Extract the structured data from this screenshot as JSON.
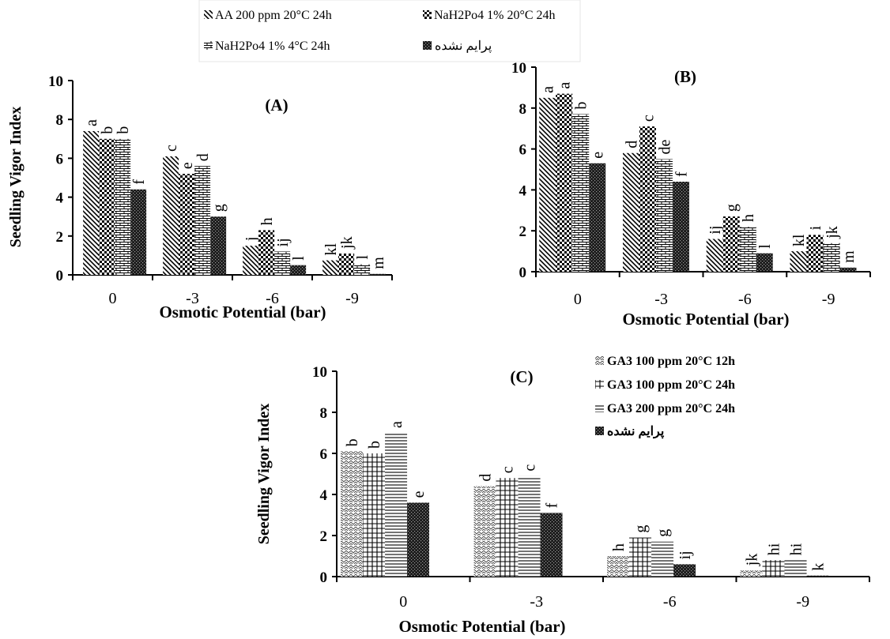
{
  "legend_top": [
    {
      "label": "AA 200 ppm 20°C 24h",
      "pattern": "diag"
    },
    {
      "label": "NaH2Po4 1% 20°C 24h",
      "pattern": "checker"
    },
    {
      "label": "NaH2Po4 1% 4°C 24h",
      "pattern": "brick"
    },
    {
      "label": "پرایم نشده",
      "pattern": "dark"
    }
  ],
  "legend_c": [
    {
      "label": "GA3 100 ppm 20°C 12h",
      "pattern": "zigzag"
    },
    {
      "label": "GA3 100 ppm 20°C 24h",
      "pattern": "grid"
    },
    {
      "label": "GA3 200 ppm 20°C 24h",
      "pattern": "hlines"
    },
    {
      "label": "پرایم نشده",
      "pattern": "dark"
    }
  ],
  "chart_data": [
    {
      "type": "bar",
      "title": "(A)",
      "xlabel": "Osmotic Potential (bar)",
      "ylabel": "Seedling Vigor Index",
      "ylim": [
        0,
        10
      ],
      "yticks": [
        0,
        2,
        4,
        6,
        8,
        10
      ],
      "categories": [
        "0",
        "-3",
        "-6",
        "-9"
      ],
      "series": [
        {
          "name": "AA 200 ppm 20°C 24h",
          "values": [
            7.4,
            6.1,
            1.5,
            0.75
          ],
          "letters": [
            "a",
            "c",
            "j",
            "kl"
          ]
        },
        {
          "name": "NaH2Po4 1% 20°C 24h",
          "values": [
            7.0,
            5.2,
            2.3,
            1.1
          ],
          "letters": [
            "b",
            "e",
            "h",
            "jk"
          ]
        },
        {
          "name": "NaH2Po4 1% 4°C 24h",
          "values": [
            7.0,
            5.6,
            1.2,
            0.55
          ],
          "letters": [
            "b",
            "d",
            "ij",
            "l"
          ]
        },
        {
          "name": "پرایم نشده",
          "values": [
            4.4,
            3.0,
            0.5,
            0.05
          ],
          "letters": [
            "f",
            "g",
            "l",
            "m"
          ]
        }
      ]
    },
    {
      "type": "bar",
      "title": "(B)",
      "xlabel": "Osmotic Potential (bar)",
      "ylabel": "",
      "ylim": [
        0,
        10
      ],
      "yticks": [
        0,
        2,
        4,
        6,
        8,
        10
      ],
      "categories": [
        "0",
        "-3",
        "-6",
        "-9"
      ],
      "series": [
        {
          "name": "AA 200 ppm 20°C 24h",
          "values": [
            8.5,
            5.8,
            1.6,
            1.0
          ],
          "letters": [
            "a",
            "d",
            "ij",
            "kl"
          ]
        },
        {
          "name": "NaH2Po4 1% 20°C 24h",
          "values": [
            8.7,
            7.1,
            2.7,
            1.8
          ],
          "letters": [
            "a",
            "c",
            "g",
            "i"
          ]
        },
        {
          "name": "NaH2Po4 1% 4°C 24h",
          "values": [
            7.7,
            5.5,
            2.2,
            1.4
          ],
          "letters": [
            "b",
            "de",
            "h",
            "jk"
          ]
        },
        {
          "name": "پرایم نشده",
          "values": [
            5.3,
            4.4,
            0.9,
            0.2
          ],
          "letters": [
            "e",
            "f",
            "l",
            "m"
          ]
        }
      ]
    },
    {
      "type": "bar",
      "title": "(C)",
      "xlabel": "Osmotic Potential (bar)",
      "ylabel": "Seedling Vigor Index",
      "ylim": [
        0,
        10
      ],
      "yticks": [
        0,
        2,
        4,
        6,
        8,
        10
      ],
      "categories": [
        "0",
        "-3",
        "-6",
        "-9"
      ],
      "series": [
        {
          "name": "GA3 100 ppm 20°C 12h",
          "values": [
            6.1,
            4.4,
            1.0,
            0.3
          ],
          "letters": [
            "b",
            "d",
            "h",
            "jk"
          ]
        },
        {
          "name": "GA3 100 ppm 20°C 24h",
          "values": [
            6.0,
            4.8,
            1.9,
            0.8
          ],
          "letters": [
            "b",
            "c",
            "g",
            "hi"
          ]
        },
        {
          "name": "GA3 200 ppm 20°C 24h",
          "values": [
            7.0,
            4.9,
            1.7,
            0.8
          ],
          "letters": [
            "a",
            "c",
            "g",
            "hi"
          ]
        },
        {
          "name": "پرایم نشده",
          "values": [
            3.6,
            3.1,
            0.6,
            0.05
          ],
          "letters": [
            "e",
            "f",
            "ij",
            "k"
          ]
        }
      ]
    }
  ]
}
